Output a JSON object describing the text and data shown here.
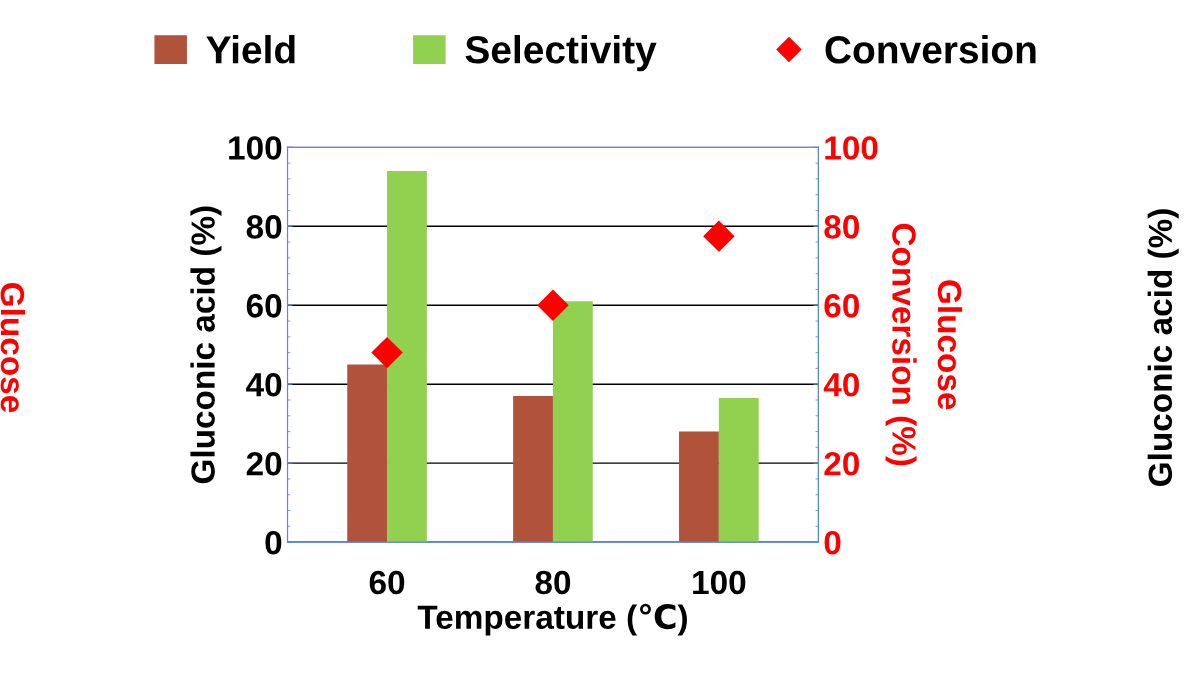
{
  "chart_data": {
    "type": "bar",
    "xlabel": "Temperature (℃)",
    "ylabel": "Gluconic acid (%)",
    "y2label": "Glucose\nConversion (%)",
    "categories": [
      "60",
      "80",
      "100"
    ],
    "series": [
      {
        "name": "Yield",
        "color": "#b0533a",
        "values": [
          45,
          37,
          28
        ]
      },
      {
        "name": "Selectivity",
        "color": "#92d050",
        "values": [
          94,
          61,
          36.5
        ]
      },
      {
        "name": "Conversion",
        "type": "scatter",
        "axis": "y2",
        "color": "#ff0000",
        "x": [
          "60",
          "80",
          "100"
        ],
        "values": [
          48,
          60,
          77.5
        ]
      }
    ],
    "ylim": [
      0,
      100
    ],
    "yticks": [
      0,
      20,
      40,
      60,
      80,
      100
    ],
    "y2lim": [
      0,
      100
    ],
    "y2ticks": [
      0,
      20,
      40,
      60,
      80,
      100
    ],
    "grid": "y",
    "legend": "top",
    "marker": "diamond",
    "annotations": [
      "Glucose",
      "Gluconic acid (%)"
    ]
  }
}
